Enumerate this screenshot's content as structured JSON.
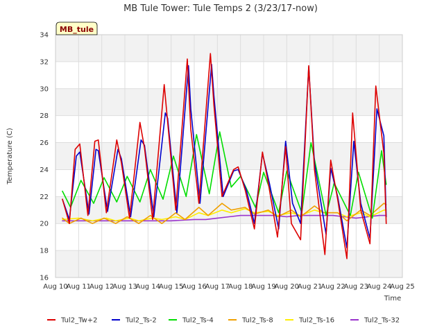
{
  "chart_data": {
    "type": "line",
    "title": "MB Tule Tower: Tule Temps 2 (3/23/17-now)",
    "xlabel": "Time",
    "ylabel": "Temperature (C)",
    "badge": "MB_tule",
    "xlim": [
      10,
      25
    ],
    "ylim": [
      16,
      34
    ],
    "x_ticks": [
      10,
      11,
      12,
      13,
      14,
      15,
      16,
      17,
      18,
      19,
      20,
      21,
      22,
      23,
      24,
      25
    ],
    "x_tick_labels": [
      "Aug 10",
      "Aug 11",
      "Aug 12",
      "Aug 13",
      "Aug 14",
      "Aug 15",
      "Aug 16",
      "Aug 17",
      "Aug 18",
      "Aug 19",
      "Aug 20",
      "Aug 21",
      "Aug 22",
      "Aug 23",
      "Aug 24",
      "Aug 25"
    ],
    "y_ticks": [
      16,
      18,
      20,
      22,
      24,
      26,
      28,
      30,
      32,
      34
    ],
    "y_tick_labels": [
      "16",
      "18",
      "20",
      "22",
      "24",
      "26",
      "28",
      "30",
      "32",
      "34"
    ],
    "grid": true,
    "background_bands": true,
    "legend_position": "bottom",
    "series": [
      {
        "name": "Tul2_Tw+2",
        "color": "#dd0000",
        "x": [
          10.3,
          10.6,
          10.85,
          11.05,
          11.4,
          11.7,
          11.85,
          12.2,
          12.65,
          12.85,
          13.2,
          13.65,
          13.85,
          14.2,
          14.7,
          14.85,
          15.2,
          15.7,
          15.85,
          16.2,
          16.7,
          16.85,
          17.2,
          17.7,
          17.9,
          18.2,
          18.6,
          18.95,
          19.2,
          19.6,
          19.95,
          20.2,
          20.6,
          20.95,
          21.2,
          21.65,
          21.9,
          22.2,
          22.6,
          22.85,
          23.2,
          23.6,
          23.85,
          24.2,
          24.3
        ],
        "values": [
          21.8,
          20.0,
          25.5,
          25.9,
          20.6,
          26.1,
          26.2,
          20.8,
          26.2,
          24.5,
          20.4,
          27.5,
          25.6,
          20.3,
          30.3,
          27.5,
          21.0,
          32.2,
          27.0,
          21.5,
          32.6,
          28.8,
          22.0,
          24.0,
          24.2,
          22.5,
          19.6,
          25.3,
          23.0,
          19.0,
          25.7,
          20.0,
          18.8,
          31.7,
          24.0,
          17.7,
          24.7,
          21.8,
          17.4,
          28.2,
          21.0,
          18.5,
          30.2,
          25.2,
          20.0
        ]
      },
      {
        "name": "Tul2_Ts-2",
        "color": "#0000cc",
        "x": [
          10.3,
          10.6,
          10.9,
          11.05,
          11.45,
          11.75,
          11.85,
          12.25,
          12.7,
          12.85,
          13.25,
          13.7,
          13.85,
          14.25,
          14.75,
          14.85,
          15.25,
          15.75,
          15.85,
          16.25,
          16.75,
          16.85,
          17.25,
          17.7,
          17.9,
          18.25,
          18.6,
          18.95,
          19.25,
          19.65,
          19.95,
          20.25,
          20.6,
          20.95,
          21.2,
          21.7,
          21.9,
          22.2,
          22.6,
          22.9,
          23.2,
          23.6,
          23.9,
          24.2,
          24.3
        ],
        "values": [
          21.8,
          20.3,
          25.0,
          25.3,
          20.7,
          25.5,
          25.4,
          20.9,
          25.5,
          24.8,
          20.5,
          26.2,
          25.8,
          20.5,
          28.2,
          27.8,
          20.8,
          31.7,
          28.5,
          21.5,
          31.8,
          29.5,
          22.0,
          23.9,
          24.0,
          22.5,
          20.0,
          25.2,
          23.0,
          19.6,
          26.1,
          21.5,
          20.0,
          31.6,
          24.5,
          19.2,
          24.1,
          22.0,
          18.2,
          26.1,
          21.5,
          18.9,
          28.5,
          26.5,
          20.5
        ]
      },
      {
        "name": "Tul2_Ts-4",
        "color": "#00dd00",
        "x": [
          10.3,
          10.65,
          11.1,
          11.65,
          12.1,
          12.65,
          13.1,
          13.65,
          14.1,
          14.65,
          15.1,
          15.65,
          16.1,
          16.65,
          17.1,
          17.6,
          18.0,
          18.65,
          19.0,
          19.65,
          20.0,
          20.65,
          21.05,
          21.7,
          22.05,
          22.75,
          23.1,
          23.7,
          24.1,
          24.3
        ],
        "values": [
          22.4,
          21.2,
          23.2,
          21.5,
          23.4,
          21.6,
          23.5,
          21.6,
          24.0,
          21.8,
          25.0,
          22.0,
          26.6,
          22.2,
          26.8,
          22.7,
          23.5,
          21.2,
          23.8,
          20.8,
          23.9,
          20.8,
          26.0,
          20.6,
          23.0,
          20.6,
          23.8,
          20.4,
          25.4,
          22.9
        ]
      },
      {
        "name": "Tul2_Ts-8",
        "color": "#f0a000",
        "x": [
          10.3,
          10.6,
          11.1,
          11.6,
          12.1,
          12.6,
          13.1,
          13.6,
          14.1,
          14.6,
          15.2,
          15.6,
          16.2,
          16.6,
          17.2,
          17.6,
          18.2,
          18.6,
          19.2,
          19.6,
          20.2,
          20.6,
          21.2,
          21.6,
          22.2,
          22.6,
          23.2,
          23.6,
          24.2,
          24.3
        ],
        "values": [
          20.4,
          20.0,
          20.4,
          20.0,
          20.4,
          20.0,
          20.5,
          20.0,
          20.6,
          20.0,
          20.8,
          20.3,
          21.2,
          20.6,
          21.5,
          21.0,
          21.2,
          20.7,
          21.0,
          20.5,
          21.0,
          20.5,
          21.3,
          20.8,
          20.8,
          20.2,
          21.0,
          20.6,
          21.5,
          21.4
        ]
      },
      {
        "name": "Tul2_Ts-16",
        "color": "#ffee00",
        "x": [
          10.3,
          11.0,
          11.6,
          12.2,
          12.6,
          13.2,
          13.6,
          14.2,
          14.6,
          15.2,
          15.6,
          16.2,
          16.6,
          17.2,
          17.6,
          18.2,
          18.6,
          19.2,
          19.6,
          20.2,
          20.6,
          21.2,
          21.6,
          22.2,
          22.6,
          23.2,
          23.6,
          24.2,
          24.3
        ],
        "values": [
          20.3,
          20.4,
          20.2,
          20.4,
          20.2,
          20.4,
          20.2,
          20.4,
          20.3,
          20.5,
          20.3,
          20.8,
          20.6,
          21.0,
          20.8,
          21.1,
          20.8,
          20.9,
          20.6,
          20.8,
          20.6,
          21.0,
          20.8,
          20.8,
          20.5,
          20.8,
          20.5,
          21.0,
          21.0
        ]
      },
      {
        "name": "Tul2_Ts-32",
        "color": "#9933cc",
        "x": [
          10.3,
          11.0,
          12.0,
          13.0,
          14.0,
          15.0,
          16.0,
          16.5,
          17.0,
          17.5,
          18.0,
          18.5,
          19.0,
          19.5,
          20.0,
          20.5,
          21.0,
          21.5,
          22.0,
          22.5,
          23.0,
          23.5,
          24.0,
          24.3
        ],
        "values": [
          20.2,
          20.2,
          20.2,
          20.2,
          20.2,
          20.2,
          20.3,
          20.3,
          20.4,
          20.5,
          20.6,
          20.6,
          20.6,
          20.6,
          20.5,
          20.6,
          20.6,
          20.6,
          20.6,
          20.5,
          20.4,
          20.5,
          20.6,
          20.6
        ]
      }
    ]
  }
}
